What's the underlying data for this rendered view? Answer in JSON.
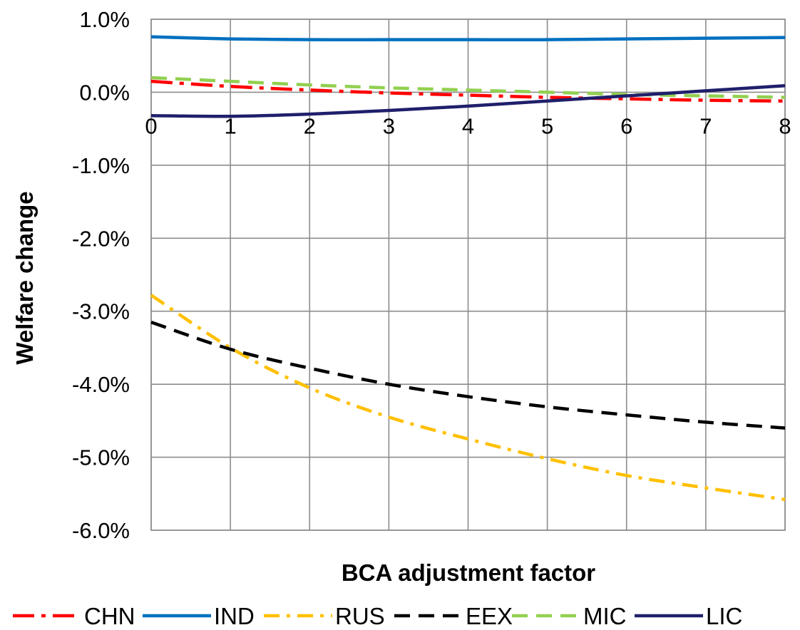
{
  "chart_data": {
    "type": "line",
    "xlabel": "BCA adjustment factor",
    "ylabel": "Welfare change",
    "x": [
      0,
      1,
      2,
      3,
      4,
      5,
      6,
      7,
      8
    ],
    "xlim": [
      0,
      8
    ],
    "ylim": [
      -6.0,
      1.0
    ],
    "x_tick_labels": [
      "0",
      "1",
      "2",
      "3",
      "4",
      "5",
      "6",
      "7",
      "8"
    ],
    "y_tick_values": [
      1.0,
      0.0,
      -1.0,
      -2.0,
      -3.0,
      -4.0,
      -5.0,
      -6.0
    ],
    "y_tick_labels": [
      "1.0%",
      "0.0%",
      "-1.0%",
      "-2.0%",
      "-3.0%",
      "-4.0%",
      "-5.0%",
      "-6.0%"
    ],
    "y_unit": "%",
    "grid": true,
    "legend_position": "bottom",
    "series": [
      {
        "name": "CHN",
        "color": "#ff0000",
        "dash": "long-dash-dot",
        "values": [
          0.15,
          0.08,
          0.03,
          -0.01,
          -0.04,
          -0.07,
          -0.09,
          -0.11,
          -0.12
        ]
      },
      {
        "name": "IND",
        "color": "#0070c0",
        "dash": "solid",
        "values": [
          0.76,
          0.73,
          0.72,
          0.72,
          0.72,
          0.72,
          0.73,
          0.74,
          0.75
        ]
      },
      {
        "name": "RUS",
        "color": "#ffc000",
        "dash": "dash-dot",
        "values": [
          -2.78,
          -3.5,
          -4.05,
          -4.45,
          -4.75,
          -5.02,
          -5.25,
          -5.42,
          -5.58
        ]
      },
      {
        "name": "EEX",
        "color": "#000000",
        "dash": "dash",
        "values": [
          -3.15,
          -3.52,
          -3.78,
          -4.0,
          -4.17,
          -4.31,
          -4.42,
          -4.52,
          -4.6
        ]
      },
      {
        "name": "MIC",
        "color": "#92d050",
        "dash": "dash",
        "values": [
          0.2,
          0.15,
          0.1,
          0.06,
          0.03,
          0.0,
          -0.03,
          -0.05,
          -0.07
        ]
      },
      {
        "name": "LIC",
        "color": "#1f1f6b",
        "dash": "solid",
        "values": [
          -0.32,
          -0.33,
          -0.3,
          -0.25,
          -0.19,
          -0.12,
          -0.05,
          0.02,
          0.09
        ]
      }
    ]
  }
}
